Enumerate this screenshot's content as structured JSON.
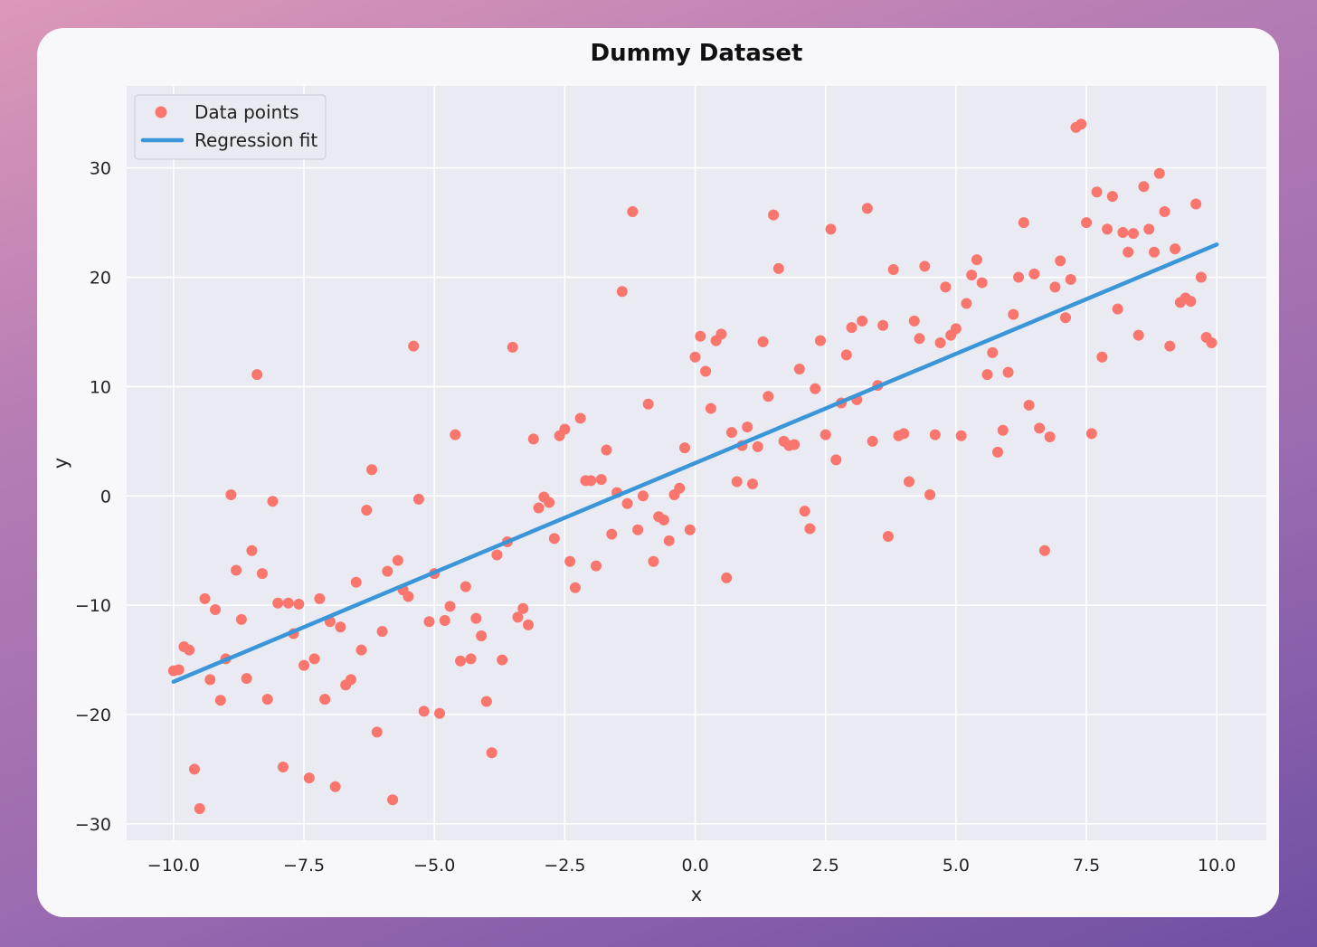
{
  "chart_data": {
    "type": "scatter",
    "title": "Dummy Dataset",
    "xlabel": "x",
    "ylabel": "y",
    "xlim": [
      -10.9,
      10.95
    ],
    "ylim": [
      -31.5,
      37.5
    ],
    "xticks": [
      -10.0,
      -7.5,
      -5.0,
      -2.5,
      0.0,
      2.5,
      5.0,
      7.5,
      10.0
    ],
    "xtick_labels": [
      "−10.0",
      "−7.5",
      "−5.0",
      "−2.5",
      "0.0",
      "2.5",
      "5.0",
      "7.5",
      "10.0"
    ],
    "yticks": [
      -30,
      -20,
      -10,
      0,
      10,
      20,
      30
    ],
    "ytick_labels": [
      "−30",
      "−20",
      "−10",
      "0",
      "10",
      "20",
      "30"
    ],
    "grid": true,
    "legend_position": "top-left",
    "colors": {
      "points": "#f8766d",
      "line": "#3a96d8",
      "plot_bg": "#eaeaf2",
      "grid": "#ffffff"
    },
    "series": [
      {
        "name": "Data points",
        "kind": "scatter",
        "points": [
          [
            -10.0,
            -16.0
          ],
          [
            -9.9,
            -15.9
          ],
          [
            -9.8,
            -13.8
          ],
          [
            -9.7,
            -14.1
          ],
          [
            -9.6,
            -25.0
          ],
          [
            -9.5,
            -28.6
          ],
          [
            -9.4,
            -9.4
          ],
          [
            -9.3,
            -16.8
          ],
          [
            -9.2,
            -10.4
          ],
          [
            -9.1,
            -18.7
          ],
          [
            -9.0,
            -14.9
          ],
          [
            -8.9,
            0.1
          ],
          [
            -8.8,
            -6.8
          ],
          [
            -8.7,
            -11.3
          ],
          [
            -8.6,
            -16.7
          ],
          [
            -8.5,
            -5.0
          ],
          [
            -8.4,
            11.1
          ],
          [
            -8.3,
            -7.1
          ],
          [
            -8.2,
            -18.6
          ],
          [
            -8.1,
            -0.5
          ],
          [
            -8.0,
            -9.8
          ],
          [
            -7.9,
            -24.8
          ],
          [
            -7.8,
            -9.8
          ],
          [
            -7.7,
            -12.6
          ],
          [
            -7.6,
            -9.9
          ],
          [
            -7.5,
            -15.5
          ],
          [
            -7.4,
            -25.8
          ],
          [
            -7.3,
            -14.9
          ],
          [
            -7.2,
            -9.4
          ],
          [
            -7.1,
            -18.6
          ],
          [
            -7.0,
            -11.5
          ],
          [
            -6.9,
            -26.6
          ],
          [
            -6.8,
            -12.0
          ],
          [
            -6.7,
            -17.3
          ],
          [
            -6.6,
            -16.8
          ],
          [
            -6.5,
            -7.9
          ],
          [
            -6.4,
            -14.1
          ],
          [
            -6.3,
            -1.3
          ],
          [
            -6.2,
            2.4
          ],
          [
            -6.1,
            -21.6
          ],
          [
            -6.0,
            -12.4
          ],
          [
            -5.9,
            -6.9
          ],
          [
            -5.8,
            -27.8
          ],
          [
            -5.7,
            -5.9
          ],
          [
            -5.6,
            -8.6
          ],
          [
            -5.5,
            -9.2
          ],
          [
            -5.4,
            13.7
          ],
          [
            -5.3,
            -0.3
          ],
          [
            -5.2,
            -19.7
          ],
          [
            -5.1,
            -11.5
          ],
          [
            -5.0,
            -7.1
          ],
          [
            -4.9,
            -19.9
          ],
          [
            -4.8,
            -11.4
          ],
          [
            -4.7,
            -10.1
          ],
          [
            -4.6,
            5.6
          ],
          [
            -4.5,
            -15.1
          ],
          [
            -4.4,
            -8.3
          ],
          [
            -4.3,
            -14.9
          ],
          [
            -4.2,
            -11.2
          ],
          [
            -4.1,
            -12.8
          ],
          [
            -4.0,
            -18.8
          ],
          [
            -3.9,
            -23.5
          ],
          [
            -3.8,
            -5.4
          ],
          [
            -3.7,
            -15.0
          ],
          [
            -3.6,
            -4.2
          ],
          [
            -3.5,
            13.6
          ],
          [
            -3.4,
            -11.1
          ],
          [
            -3.3,
            -10.3
          ],
          [
            -3.2,
            -11.8
          ],
          [
            -3.1,
            5.2
          ],
          [
            -3.0,
            -1.1
          ],
          [
            -2.9,
            -0.1
          ],
          [
            -2.8,
            -0.6
          ],
          [
            -2.7,
            -3.9
          ],
          [
            -2.6,
            5.5
          ],
          [
            -2.5,
            6.1
          ],
          [
            -2.4,
            -6.0
          ],
          [
            -2.3,
            -8.4
          ],
          [
            -2.2,
            7.1
          ],
          [
            -2.1,
            1.4
          ],
          [
            -2.0,
            1.4
          ],
          [
            -1.9,
            -6.4
          ],
          [
            -1.8,
            1.5
          ],
          [
            -1.7,
            4.2
          ],
          [
            -1.6,
            -3.5
          ],
          [
            -1.5,
            0.3
          ],
          [
            -1.4,
            18.7
          ],
          [
            -1.3,
            -0.7
          ],
          [
            -1.2,
            26.0
          ],
          [
            -1.1,
            -3.1
          ],
          [
            -1.0,
            0.0
          ],
          [
            -0.9,
            8.4
          ],
          [
            -0.8,
            -6.0
          ],
          [
            -0.7,
            -1.9
          ],
          [
            -0.6,
            -2.2
          ],
          [
            -0.5,
            -4.1
          ],
          [
            -0.4,
            0.1
          ],
          [
            -0.3,
            0.7
          ],
          [
            -0.2,
            4.4
          ],
          [
            -0.1,
            -3.1
          ],
          [
            0.0,
            12.7
          ],
          [
            0.1,
            14.6
          ],
          [
            0.2,
            11.4
          ],
          [
            0.3,
            8.0
          ],
          [
            0.4,
            14.2
          ],
          [
            0.5,
            14.8
          ],
          [
            0.6,
            -7.5
          ],
          [
            0.7,
            5.8
          ],
          [
            0.8,
            1.3
          ],
          [
            0.9,
            4.6
          ],
          [
            1.0,
            6.3
          ],
          [
            1.1,
            1.1
          ],
          [
            1.2,
            4.5
          ],
          [
            1.3,
            14.1
          ],
          [
            1.4,
            9.1
          ],
          [
            1.5,
            25.7
          ],
          [
            1.6,
            20.8
          ],
          [
            1.7,
            5.0
          ],
          [
            1.8,
            4.6
          ],
          [
            1.9,
            4.7
          ],
          [
            2.0,
            11.6
          ],
          [
            2.1,
            -1.4
          ],
          [
            2.2,
            -3.0
          ],
          [
            2.3,
            9.8
          ],
          [
            2.4,
            14.2
          ],
          [
            2.5,
            5.6
          ],
          [
            2.6,
            24.4
          ],
          [
            2.7,
            3.3
          ],
          [
            2.8,
            8.5
          ],
          [
            2.9,
            12.9
          ],
          [
            3.0,
            15.4
          ],
          [
            3.1,
            8.8
          ],
          [
            3.2,
            16.0
          ],
          [
            3.3,
            26.3
          ],
          [
            3.4,
            5.0
          ],
          [
            3.5,
            10.1
          ],
          [
            3.6,
            15.6
          ],
          [
            3.7,
            -3.7
          ],
          [
            3.8,
            20.7
          ],
          [
            3.9,
            5.5
          ],
          [
            4.0,
            5.7
          ],
          [
            4.1,
            1.3
          ],
          [
            4.2,
            16.0
          ],
          [
            4.3,
            14.4
          ],
          [
            4.4,
            21.0
          ],
          [
            4.5,
            0.1
          ],
          [
            4.6,
            5.6
          ],
          [
            4.7,
            14.0
          ],
          [
            4.8,
            19.1
          ],
          [
            4.9,
            14.7
          ],
          [
            5.0,
            15.3
          ],
          [
            5.1,
            5.5
          ],
          [
            5.2,
            17.6
          ],
          [
            5.3,
            20.2
          ],
          [
            5.4,
            21.6
          ],
          [
            5.5,
            19.5
          ],
          [
            5.6,
            11.1
          ],
          [
            5.7,
            13.1
          ],
          [
            5.8,
            4.0
          ],
          [
            5.9,
            6.0
          ],
          [
            6.0,
            11.3
          ],
          [
            6.1,
            16.6
          ],
          [
            6.2,
            20.0
          ],
          [
            6.3,
            25.0
          ],
          [
            6.4,
            8.3
          ],
          [
            6.5,
            20.3
          ],
          [
            6.6,
            6.2
          ],
          [
            6.7,
            -5.0
          ],
          [
            6.8,
            5.4
          ],
          [
            6.9,
            19.1
          ],
          [
            7.0,
            21.5
          ],
          [
            7.1,
            16.3
          ],
          [
            7.2,
            19.8
          ],
          [
            7.3,
            33.7
          ],
          [
            7.4,
            34.0
          ],
          [
            7.5,
            25.0
          ],
          [
            7.6,
            5.7
          ],
          [
            7.7,
            27.8
          ],
          [
            7.8,
            12.7
          ],
          [
            7.9,
            24.4
          ],
          [
            8.0,
            27.4
          ],
          [
            8.1,
            17.1
          ],
          [
            8.2,
            24.1
          ],
          [
            8.3,
            22.3
          ],
          [
            8.4,
            24.0
          ],
          [
            8.5,
            14.7
          ],
          [
            8.6,
            28.3
          ],
          [
            8.7,
            24.4
          ],
          [
            8.8,
            22.3
          ],
          [
            8.9,
            29.5
          ],
          [
            9.0,
            26.0
          ],
          [
            9.1,
            13.7
          ],
          [
            9.2,
            22.6
          ],
          [
            9.3,
            17.7
          ],
          [
            9.4,
            18.1
          ],
          [
            9.5,
            17.8
          ],
          [
            9.6,
            26.7
          ],
          [
            9.7,
            20.0
          ],
          [
            9.8,
            14.5
          ],
          [
            9.9,
            14.0
          ]
        ]
      },
      {
        "name": "Regression fit",
        "kind": "line",
        "x": [
          -10.0,
          10.0
        ],
        "y": [
          -17.0,
          23.0
        ]
      }
    ]
  }
}
